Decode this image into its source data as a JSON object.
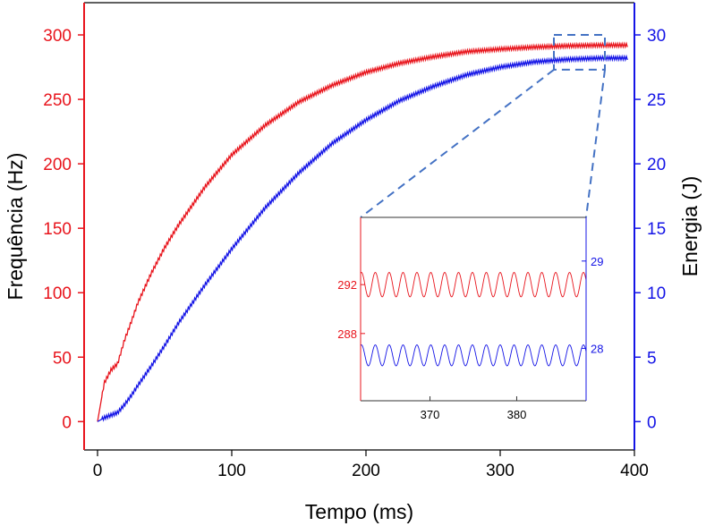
{
  "chart_data": {
    "type": "line",
    "xlabel": "Tempo (ms)",
    "ylabel_left": "Frequência (Hz)",
    "ylabel_right": "Energia (J)",
    "xlim": [
      -10,
      400
    ],
    "ylim_left": [
      -22,
      325
    ],
    "ylim_right": [
      -2.2,
      32.5
    ],
    "x_ticks": [
      0,
      100,
      200,
      300,
      400
    ],
    "y_left_ticks": [
      0,
      50,
      100,
      150,
      200,
      250,
      300
    ],
    "y_right_ticks": [
      0,
      5,
      10,
      15,
      20,
      25,
      30
    ],
    "grid": false,
    "colors": {
      "left_axis": "#e8141c",
      "right_axis": "#1414e6",
      "inset_frame": "#4472c4"
    },
    "series": [
      {
        "name": "Frequência",
        "axis": "left",
        "color": "#e8141c",
        "x": [
          0,
          5,
          10,
          15,
          20,
          25,
          30,
          40,
          50,
          60,
          80,
          100,
          125,
          150,
          175,
          200,
          225,
          250,
          275,
          300,
          325,
          350,
          375,
          395
        ],
        "y": [
          0,
          30,
          40,
          45,
          63,
          77,
          92,
          115,
          135,
          152,
          182,
          207,
          230,
          248,
          261,
          271,
          278,
          283,
          287,
          289,
          290.5,
          291.5,
          292,
          292
        ]
      },
      {
        "name": "Energia",
        "axis": "right",
        "color": "#1414e6",
        "x": [
          0,
          5,
          10,
          15,
          20,
          25,
          30,
          40,
          50,
          60,
          80,
          100,
          125,
          150,
          175,
          200,
          225,
          250,
          275,
          300,
          325,
          350,
          375,
          395
        ],
        "y": [
          0,
          0.3,
          0.5,
          0.7,
          1.3,
          2.0,
          2.8,
          4.3,
          5.9,
          7.6,
          10.6,
          13.4,
          16.6,
          19.3,
          21.6,
          23.4,
          24.9,
          26.0,
          26.9,
          27.5,
          27.9,
          28.1,
          28.2,
          28.2
        ]
      }
    ],
    "zoom_box": {
      "x": [
        340,
        378
      ],
      "y_left": [
        273,
        300
      ]
    },
    "inset": {
      "xlim": [
        362,
        388
      ],
      "x_ticks": [
        370,
        380
      ],
      "left_ticks": [
        288,
        292
      ],
      "right_ticks": [
        28,
        29
      ],
      "ylim_left": [
        282.5,
        297.5
      ],
      "ylim_right": [
        27.4,
        29.5
      ],
      "oscillation_period_ms": 1.6,
      "freq_center": 292.0,
      "freq_amplitude": 1.0,
      "energy_center": 27.92,
      "energy_amplitude": 0.12
    }
  }
}
